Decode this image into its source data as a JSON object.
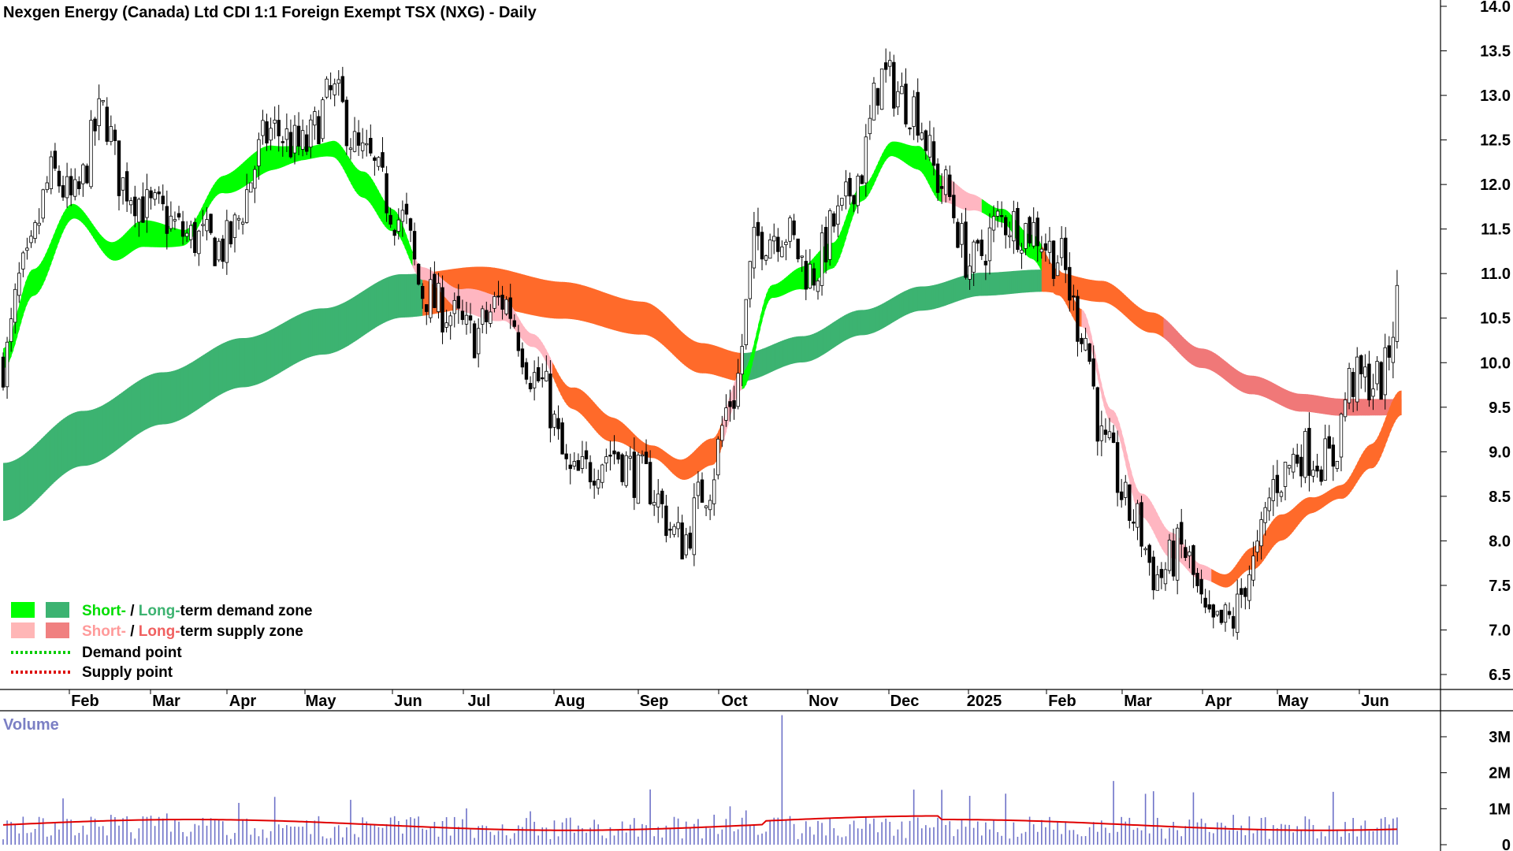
{
  "chart_data": {
    "type": "candlestick",
    "title": "Nexgen Energy (Canada) Ltd CDI 1:1 Foreign Exempt TSX (NXG) - Daily",
    "x_labels": [
      "Feb",
      "Mar",
      "Apr",
      "May",
      "Jun",
      "Jul",
      "Aug",
      "Sep",
      "Oct",
      "Nov",
      "Dec",
      "2025",
      "Feb",
      "Mar",
      "Apr",
      "May",
      "Jun"
    ],
    "y_ticks": [
      "14.0",
      "13.5",
      "13.0",
      "12.5",
      "12.0",
      "11.5",
      "11.0",
      "10.5",
      "10.0",
      "9.5",
      "9.0",
      "8.5",
      "8.0",
      "7.5",
      "7.0",
      "6.5"
    ],
    "ylim": [
      6.3,
      14.0
    ],
    "price_anchors": [
      [
        0,
        10.0
      ],
      [
        10,
        11.0
      ],
      [
        25,
        12.1
      ],
      [
        35,
        11.8
      ],
      [
        50,
        12.8
      ],
      [
        60,
        12.0
      ],
      [
        75,
        11.7
      ],
      [
        95,
        11.4
      ],
      [
        110,
        11.3
      ],
      [
        135,
        12.6
      ],
      [
        150,
        12.4
      ],
      [
        165,
        13.0
      ],
      [
        180,
        12.3
      ],
      [
        200,
        11.6
      ],
      [
        210,
        10.8
      ],
      [
        220,
        10.6
      ],
      [
        235,
        10.3
      ],
      [
        250,
        10.7
      ],
      [
        268,
        9.8
      ],
      [
        285,
        8.7
      ],
      [
        305,
        9.0
      ],
      [
        320,
        8.7
      ],
      [
        340,
        8.0
      ],
      [
        352,
        8.6
      ],
      [
        365,
        9.6
      ],
      [
        378,
        11.4
      ],
      [
        390,
        11.5
      ],
      [
        405,
        11.0
      ],
      [
        418,
        11.6
      ],
      [
        428,
        12.1
      ],
      [
        440,
        13.2
      ],
      [
        455,
        12.9
      ],
      [
        470,
        12.0
      ],
      [
        485,
        11.1
      ],
      [
        500,
        11.6
      ],
      [
        515,
        11.5
      ],
      [
        528,
        11.2
      ],
      [
        540,
        10.4
      ],
      [
        552,
        9.0
      ],
      [
        565,
        8.3
      ],
      [
        578,
        7.6
      ],
      [
        590,
        7.9
      ],
      [
        605,
        7.0
      ],
      [
        615,
        7.1
      ],
      [
        625,
        7.7
      ],
      [
        638,
        8.7
      ],
      [
        650,
        9.0
      ],
      [
        665,
        8.9
      ],
      [
        675,
        9.8
      ],
      [
        690,
        9.8
      ],
      [
        700,
        10.8
      ]
    ],
    "short_term_zone_anchors": [
      [
        0,
        10.05
      ],
      [
        15,
        10.9
      ],
      [
        35,
        11.7
      ],
      [
        55,
        11.25
      ],
      [
        70,
        11.45
      ],
      [
        90,
        11.4
      ],
      [
        110,
        12.0
      ],
      [
        135,
        12.3
      ],
      [
        150,
        12.35
      ],
      [
        165,
        12.4
      ],
      [
        180,
        12.0
      ],
      [
        195,
        11.6
      ],
      [
        210,
        11.0
      ],
      [
        230,
        10.7
      ],
      [
        250,
        10.6
      ],
      [
        265,
        10.25
      ],
      [
        285,
        9.6
      ],
      [
        305,
        9.25
      ],
      [
        325,
        9.0
      ],
      [
        340,
        8.8
      ],
      [
        355,
        9.0
      ],
      [
        370,
        9.8
      ],
      [
        385,
        10.8
      ],
      [
        400,
        10.95
      ],
      [
        415,
        11.2
      ],
      [
        430,
        11.9
      ],
      [
        445,
        12.4
      ],
      [
        458,
        12.3
      ],
      [
        470,
        11.95
      ],
      [
        485,
        11.8
      ],
      [
        500,
        11.65
      ],
      [
        515,
        11.3
      ],
      [
        528,
        10.9
      ],
      [
        540,
        10.5
      ],
      [
        555,
        9.4
      ],
      [
        570,
        8.4
      ],
      [
        585,
        7.95
      ],
      [
        600,
        7.65
      ],
      [
        612,
        7.55
      ],
      [
        625,
        7.8
      ],
      [
        640,
        8.15
      ],
      [
        655,
        8.4
      ],
      [
        670,
        8.55
      ],
      [
        685,
        8.95
      ],
      [
        700,
        9.55
      ]
    ],
    "short_term_zone_width": 0.22,
    "long_term_zone_anchors": [
      [
        0,
        8.55
      ],
      [
        40,
        9.15
      ],
      [
        80,
        9.6
      ],
      [
        120,
        10.0
      ],
      [
        160,
        10.35
      ],
      [
        200,
        10.75
      ],
      [
        240,
        10.85
      ],
      [
        280,
        10.7
      ],
      [
        320,
        10.5
      ],
      [
        350,
        10.05
      ],
      [
        370,
        9.95
      ],
      [
        400,
        10.15
      ],
      [
        430,
        10.45
      ],
      [
        460,
        10.72
      ],
      [
        490,
        10.88
      ],
      [
        520,
        10.92
      ],
      [
        550,
        10.8
      ],
      [
        575,
        10.45
      ],
      [
        600,
        10.05
      ],
      [
        625,
        9.75
      ],
      [
        650,
        9.55
      ],
      [
        670,
        9.5
      ],
      [
        700,
        9.5
      ]
    ],
    "long_term_zone_width": [
      0.65,
      0.45,
      0.3,
      0.18
    ],
    "supply_segments_short": [
      [
        205,
        275
      ],
      [
        360,
        370
      ],
      [
        470,
        490
      ],
      [
        540,
        605
      ]
    ],
    "supply_segments_long": [
      [
        210,
        370
      ],
      [
        520,
        700
      ]
    ],
    "volume": {
      "label": "Volume",
      "y_ticks": [
        "3M",
        "2M",
        "1M",
        "0"
      ],
      "max": 3.0,
      "baseline_avg": 0.55
    },
    "legend": [
      {
        "type": "zone",
        "label_short": "Short-",
        "sep": " / ",
        "label_long": "Long-",
        "label_rest": "term demand zone",
        "short_color": "#00ff00",
        "long_color": "#3cb371"
      },
      {
        "type": "zone",
        "label_short": "Short-",
        "sep": " / ",
        "label_long": "Long-",
        "label_rest": "term supply zone",
        "short_color": "#ffb6b6",
        "long_color": "#f08080"
      },
      {
        "type": "point",
        "label": "Demand point",
        "color": "#00cc00"
      },
      {
        "type": "point",
        "label": "Supply point",
        "color": "#dd0000"
      }
    ],
    "colors": {
      "demand_short": "#00ff00",
      "demand_long": "#3cb371",
      "supply_short": "#ffb6c1",
      "supply_long": "#ff6a2a",
      "supply_long_recent": "#f07878",
      "volume_bar": "#6e72c8",
      "volume_avg": "#e00000"
    }
  }
}
